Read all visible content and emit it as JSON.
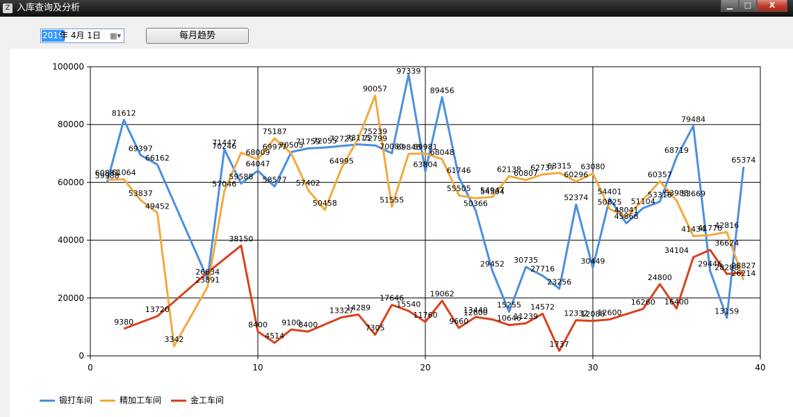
{
  "window": {
    "title": "入库查询及分析",
    "icon": "app-icon",
    "controls": {
      "minimize": "▁",
      "maximize": "□",
      "close": "X"
    }
  },
  "toolbar": {
    "date_year": "2019",
    "date_rest": "年  4月  1日",
    "calendar_icon": "calendar-dropdown-icon",
    "monthly_button": "每月趋势"
  },
  "chart_data": {
    "type": "line",
    "xlim": [
      0,
      40
    ],
    "ylim": [
      0,
      100000
    ],
    "x_ticks": [
      "0",
      "10",
      "20",
      "30",
      "40"
    ],
    "y_ticks": [
      "0",
      "20000",
      "40000",
      "60000",
      "80000",
      "100000"
    ],
    "grid": true,
    "legend_position": "bottom-left",
    "series": [
      {
        "name": "锻打车间",
        "color": "#4a8fe0",
        "points": [
          [
            1,
            59988
          ],
          [
            2,
            81612
          ],
          [
            3,
            69397
          ],
          [
            4,
            66162
          ],
          [
            7,
            26634
          ],
          [
            8,
            71447
          ],
          [
            9,
            59588
          ],
          [
            10,
            64047
          ],
          [
            11,
            58577
          ],
          [
            12,
            70505
          ],
          [
            13,
            71759
          ],
          [
            14,
            72055
          ],
          [
            16,
            73115
          ],
          [
            17,
            72799
          ],
          [
            18,
            70080
          ],
          [
            19,
            97339
          ],
          [
            20,
            63804
          ],
          [
            21,
            89456
          ],
          [
            22,
            61746
          ],
          [
            23,
            50366
          ],
          [
            24,
            29452
          ],
          [
            25,
            15255
          ],
          [
            26,
            30735
          ],
          [
            27,
            27716
          ],
          [
            28,
            23256
          ],
          [
            29,
            52374
          ],
          [
            30,
            30449
          ],
          [
            31,
            54401
          ],
          [
            32,
            45868
          ],
          [
            33,
            51104
          ],
          [
            34,
            53318
          ],
          [
            35,
            68719
          ],
          [
            36,
            79484
          ],
          [
            37,
            29446
          ],
          [
            38,
            13159
          ],
          [
            39,
            65374
          ]
        ]
      },
      {
        "name": "精加工车间",
        "color": "#f3a93c",
        "points": [
          [
            1,
            60881
          ],
          [
            2,
            61064
          ],
          [
            3,
            53837
          ],
          [
            4,
            49452
          ],
          [
            5,
            3342
          ],
          [
            7,
            23891
          ],
          [
            8,
            57046
          ],
          [
            9,
            70246
          ],
          [
            10,
            68009
          ],
          [
            11,
            75187
          ],
          [
            12,
            69977
          ],
          [
            13,
            57402
          ],
          [
            14,
            50458
          ],
          [
            15,
            64995
          ],
          [
            16,
            75239
          ],
          [
            17,
            90057
          ],
          [
            18,
            51555
          ],
          [
            19,
            69848
          ],
          [
            20,
            69981
          ],
          [
            21,
            68048
          ],
          [
            22,
            55505
          ],
          [
            23,
            54504
          ],
          [
            24,
            54947
          ],
          [
            25,
            62138
          ],
          [
            26,
            60807
          ],
          [
            27,
            62737
          ],
          [
            28,
            63315
          ],
          [
            29,
            60296
          ],
          [
            30,
            63080
          ],
          [
            31,
            50825
          ],
          [
            32,
            48041
          ],
          [
            33,
            53988
          ],
          [
            34,
            60357
          ],
          [
            35,
            53669
          ],
          [
            36,
            41434
          ],
          [
            37,
            41776
          ],
          [
            38,
            42816
          ],
          [
            39,
            26214
          ]
        ]
      },
      {
        "name": "金工车间",
        "color": "#d9411c",
        "points": [
          [
            2,
            9380
          ],
          [
            4,
            13720
          ],
          [
            7,
            28827
          ],
          [
            9,
            38150
          ],
          [
            10,
            8400
          ],
          [
            11,
            4514
          ],
          [
            12,
            9100
          ],
          [
            13,
            8400
          ],
          [
            15,
            13327
          ],
          [
            16,
            14289
          ],
          [
            17,
            7305
          ],
          [
            18,
            17646
          ],
          [
            19,
            15540
          ],
          [
            20,
            11760
          ],
          [
            21,
            19062
          ],
          [
            22,
            9660
          ],
          [
            23,
            13440
          ],
          [
            24,
            12600
          ],
          [
            25,
            10646
          ],
          [
            26,
            11239
          ],
          [
            27,
            14572
          ],
          [
            28,
            1737
          ],
          [
            29,
            12332
          ],
          [
            30,
            12088
          ],
          [
            31,
            12600
          ],
          [
            33,
            16260
          ],
          [
            34,
            24800
          ],
          [
            35,
            16400
          ],
          [
            36,
            34104
          ],
          [
            37,
            36624
          ],
          [
            38,
            28288
          ],
          [
            39,
            28827
          ]
        ]
      }
    ],
    "data_labels": [
      [
        "60881",
        1,
        60881
      ],
      [
        "59988",
        1,
        59988
      ],
      [
        "81612",
        2,
        81612
      ],
      [
        "61064",
        2,
        61064
      ],
      [
        "69397",
        3,
        69397
      ],
      [
        "53837",
        3,
        53837
      ],
      [
        "66162",
        4,
        66162
      ],
      [
        "49452",
        4,
        49452
      ],
      [
        "3342",
        5,
        3342
      ],
      [
        "13720",
        4,
        13720
      ],
      [
        "9380",
        2,
        9380
      ],
      [
        "23891",
        7,
        23891
      ],
      [
        "26634",
        7,
        26634
      ],
      [
        "71447",
        8,
        71447
      ],
      [
        "70246",
        8,
        70246
      ],
      [
        "57046",
        8,
        57046
      ],
      [
        "59588",
        9,
        59588
      ],
      [
        "38150",
        9,
        38150
      ],
      [
        "68009",
        10,
        68009
      ],
      [
        "64047",
        10,
        64047
      ],
      [
        "8400",
        10,
        8400
      ],
      [
        "75187",
        11,
        75187
      ],
      [
        "69977",
        11,
        69977
      ],
      [
        "58577",
        11,
        58577
      ],
      [
        "4514",
        11,
        4514
      ],
      [
        "70505",
        12,
        70505
      ],
      [
        "9100",
        12,
        9100
      ],
      [
        "71759",
        13,
        71759
      ],
      [
        "57402",
        13,
        57402
      ],
      [
        "8400",
        13,
        8400
      ],
      [
        "72055",
        14,
        72055
      ],
      [
        "50458",
        14,
        50458
      ],
      [
        "72729",
        15,
        72729
      ],
      [
        "64995",
        15,
        64995
      ],
      [
        "13327",
        15,
        13327
      ],
      [
        "14289",
        16,
        14289
      ],
      [
        "73115",
        16,
        73115
      ],
      [
        "75239",
        17,
        75239
      ],
      [
        "90057",
        17,
        90057
      ],
      [
        "72799",
        17,
        72799
      ],
      [
        "7305",
        17,
        7305
      ],
      [
        "70080",
        18,
        70080
      ],
      [
        "51555",
        18,
        51555
      ],
      [
        "17646",
        18,
        17646
      ],
      [
        "97339",
        19,
        97339
      ],
      [
        "69848",
        19,
        69848
      ],
      [
        "15540",
        19,
        15540
      ],
      [
        "69981",
        20,
        69981
      ],
      [
        "63804",
        20,
        63804
      ],
      [
        "11760",
        20,
        11760
      ],
      [
        "89456",
        21,
        89456
      ],
      [
        "68048",
        21,
        68048
      ],
      [
        "19062",
        21,
        19062
      ],
      [
        "61746",
        22,
        61746
      ],
      [
        "55505",
        22,
        55505
      ],
      [
        "9660",
        22,
        9660
      ],
      [
        "50366",
        23,
        50366
      ],
      [
        "13440",
        23,
        13440
      ],
      [
        "12600",
        23,
        12600
      ],
      [
        "54504",
        24,
        54504
      ],
      [
        "54947",
        24,
        54947
      ],
      [
        "29452",
        24,
        29452
      ],
      [
        "62138",
        25,
        62138
      ],
      [
        "15255",
        25,
        15255
      ],
      [
        "10646",
        25,
        10646
      ],
      [
        "60807",
        26,
        60807
      ],
      [
        "30735",
        26,
        30735
      ],
      [
        "11239",
        26,
        11239
      ],
      [
        "62737",
        27,
        62737
      ],
      [
        "27716",
        27,
        27716
      ],
      [
        "14572",
        27,
        14572
      ],
      [
        "63315",
        28,
        63315
      ],
      [
        "23256",
        28,
        23256
      ],
      [
        "1737",
        28,
        1737
      ],
      [
        "60296",
        29,
        60296
      ],
      [
        "52374",
        29,
        52374
      ],
      [
        "12332",
        29,
        12332
      ],
      [
        "63080",
        30,
        63080
      ],
      [
        "30449",
        30,
        30449
      ],
      [
        "12088",
        30,
        12088
      ],
      [
        "54401",
        31,
        54401
      ],
      [
        "50825",
        31,
        50825
      ],
      [
        "12600",
        31,
        12600
      ],
      [
        "48041",
        32,
        48041
      ],
      [
        "45868",
        32,
        45868
      ],
      [
        "16260",
        33,
        16260
      ],
      [
        "51104",
        33,
        51104
      ],
      [
        "53318",
        34,
        53318
      ],
      [
        "24800",
        34,
        24800
      ],
      [
        "60357",
        34,
        60357
      ],
      [
        "34104",
        35,
        34104
      ],
      [
        "16400",
        35,
        16400
      ],
      [
        "68719",
        35,
        68719
      ],
      [
        "53988",
        35,
        53988
      ],
      [
        "53669",
        36,
        53669
      ],
      [
        "79484",
        36,
        79484
      ],
      [
        "41434",
        36,
        41434
      ],
      [
        "29446",
        37,
        29446
      ],
      [
        "41776",
        37,
        41776
      ],
      [
        "36624",
        38,
        36624
      ],
      [
        "42816",
        38,
        42816
      ],
      [
        "28288",
        38,
        28288
      ],
      [
        "13159",
        38,
        13159
      ],
      [
        "65374",
        39,
        65374
      ],
      [
        "28827",
        39,
        28827
      ],
      [
        "26214",
        39,
        26214
      ]
    ]
  }
}
